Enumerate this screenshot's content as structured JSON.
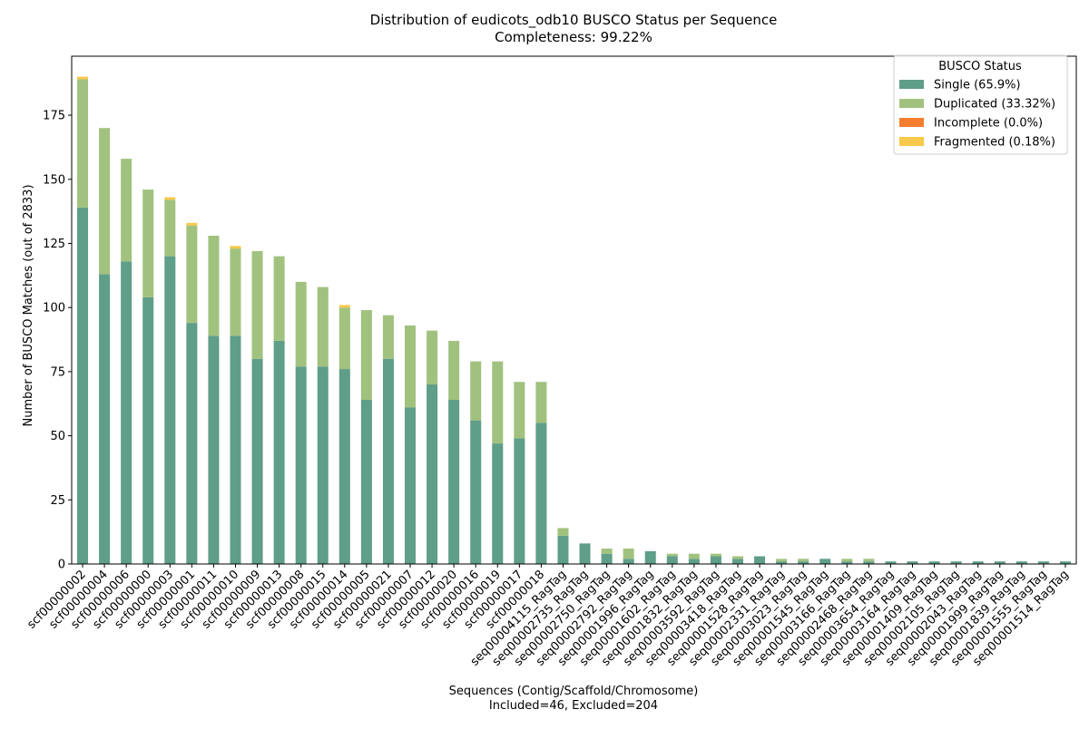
{
  "chart_data": {
    "type": "bar",
    "stacked": true,
    "title": "Distribution of eudicots_odb10 BUSCO Status per Sequence",
    "subtitle": "Completeness: 99.22%",
    "xlabel": "Sequences (Contig/Scaffold/Chromosome)",
    "xlabel_sub": "Included=46, Excluded=204",
    "ylabel": "Number of BUSCO Matches (out of 2833)",
    "ylim": [
      0,
      198
    ],
    "yticks": [
      0,
      25,
      50,
      75,
      100,
      125,
      150,
      175
    ],
    "grid": false,
    "legend": {
      "title": "BUSCO Status",
      "placement": "top-right"
    },
    "colors": {
      "Single": "#5f9e89",
      "Duplicated": "#a1c27e",
      "Incomplete": "#f47d2f",
      "Fragmented": "#f8c94a"
    },
    "categories": [
      "scf00000002",
      "scf00000004",
      "scf00000006",
      "scf00000000",
      "scf00000003",
      "scf00000001",
      "scf00000011",
      "scf00000010",
      "scf00000009",
      "scf00000013",
      "scf00000008",
      "scf00000015",
      "scf00000014",
      "scf00000005",
      "scf00000021",
      "scf00000007",
      "scf00000012",
      "scf00000020",
      "scf00000016",
      "scf00000019",
      "scf00000017",
      "scf00000018",
      "seq00004115_RagTag",
      "seq00002735_RagTag",
      "seq00002750_RagTag",
      "seq00002792_RagTag",
      "seq00001996_RagTag",
      "seq00001602_RagTag",
      "seq00001832_RagTag",
      "seq00003592_RagTag",
      "seq00003418_RagTag",
      "seq00001528_RagTag",
      "seq00002331_RagTag",
      "seq00003023_RagTag",
      "seq00001545_RagTag",
      "seq00003166_RagTag",
      "seq00002468_RagTag",
      "seq00003654_RagTag",
      "seq00003164_RagTag",
      "seq00001409_RagTag",
      "seq00002105_RagTag",
      "seq00002043_RagTag",
      "seq00001999_RagTag",
      "seq00001839_RagTag",
      "seq00001555_RagTag",
      "seq00001514_RagTag"
    ],
    "series": [
      {
        "name": "Single (65.9%)",
        "key": "Single",
        "values": [
          139,
          113,
          118,
          104,
          120,
          94,
          89,
          89,
          80,
          87,
          77,
          77,
          76,
          64,
          80,
          61,
          70,
          64,
          56,
          47,
          49,
          55,
          11,
          8,
          4,
          2,
          5,
          3,
          2,
          3,
          2,
          3,
          1,
          1,
          2,
          1,
          1,
          1,
          1,
          1,
          1,
          1,
          1,
          1,
          1,
          1
        ]
      },
      {
        "name": "Duplicated (33.32%)",
        "key": "Duplicated",
        "values": [
          50,
          57,
          40,
          42,
          22,
          38,
          39,
          34,
          42,
          33,
          33,
          31,
          24,
          35,
          17,
          32,
          21,
          23,
          23,
          32,
          22,
          16,
          3,
          0,
          2,
          4,
          0,
          1,
          2,
          1,
          1,
          0,
          1,
          1,
          0,
          1,
          1,
          0,
          0,
          0,
          0,
          0,
          0,
          0,
          0,
          0
        ]
      },
      {
        "name": "Incomplete (0.0%)",
        "key": "Incomplete",
        "values": [
          0,
          0,
          0,
          0,
          0,
          0,
          0,
          0,
          0,
          0,
          0,
          0,
          0,
          0,
          0,
          0,
          0,
          0,
          0,
          0,
          0,
          0,
          0,
          0,
          0,
          0,
          0,
          0,
          0,
          0,
          0,
          0,
          0,
          0,
          0,
          0,
          0,
          0,
          0,
          0,
          0,
          0,
          0,
          0,
          0,
          0
        ]
      },
      {
        "name": "Fragmented (0.18%)",
        "key": "Fragmented",
        "values": [
          1,
          0,
          0,
          0,
          1,
          1,
          0,
          1,
          0,
          0,
          0,
          0,
          1,
          0,
          0,
          0,
          0,
          0,
          0,
          0,
          0,
          0,
          0,
          0,
          0,
          0,
          0,
          0,
          0,
          0,
          0,
          0,
          0,
          0,
          0,
          0,
          0,
          0,
          0,
          0,
          0,
          0,
          0,
          0,
          0,
          0
        ]
      }
    ]
  }
}
